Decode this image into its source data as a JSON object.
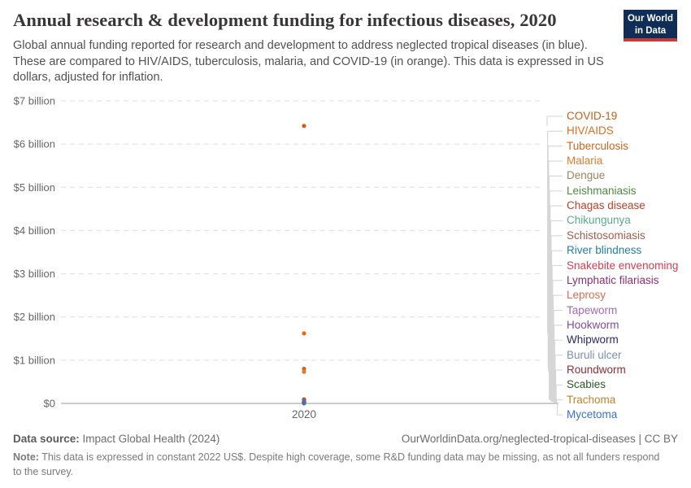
{
  "header": {
    "title": "Annual research & development funding for infectious diseases, 2020",
    "subtitle": "Global annual funding reported for research and development to address neglected tropical diseases (in blue). These are compared to HIV/AIDS, tuberculosis, malaria, and COVID-19 (in orange). This data is expressed in US dollars, adjusted for inflation.",
    "logo": {
      "line1": "Our World",
      "line2": "in Data",
      "bg_color": "#0E2D57",
      "stripe_color": "#CE372B"
    }
  },
  "chart_data": {
    "type": "scatter",
    "title": "Annual research & development funding for infectious diseases, 2020",
    "x": [
      2020
    ],
    "x_tick_label": "2020",
    "unit": "US$ billion, constant 2022 US$",
    "ylim": [
      0,
      7
    ],
    "grid": true,
    "legend_position": "right",
    "y_ticks": [
      {
        "value": 7,
        "label": "$7 billion"
      },
      {
        "value": 6,
        "label": "$6 billion"
      },
      {
        "value": 5,
        "label": "$5 billion"
      },
      {
        "value": 4,
        "label": "$4 billion"
      },
      {
        "value": 3,
        "label": "$3 billion"
      },
      {
        "value": 2,
        "label": "$2 billion"
      },
      {
        "value": 1,
        "label": "$1 billion"
      },
      {
        "value": 0,
        "label": "$0"
      }
    ],
    "series": [
      {
        "name": "COVID-19",
        "value": 6.42,
        "color": "#CB5D15"
      },
      {
        "name": "HIV/AIDS",
        "value": 1.62,
        "color": "#DF6E1D"
      },
      {
        "name": "Tuberculosis",
        "value": 0.8,
        "color": "#D2641C"
      },
      {
        "name": "Malaria",
        "value": 0.73,
        "color": "#DE7C30"
      },
      {
        "name": "Dengue",
        "value": 0.095,
        "color": "#9C8465"
      },
      {
        "name": "Leishmaniasis",
        "value": 0.085,
        "color": "#4C8B3C"
      },
      {
        "name": "Chagas disease",
        "value": 0.08,
        "color": "#BC4127"
      },
      {
        "name": "Chikungunya",
        "value": 0.06,
        "color": "#58AC8C"
      },
      {
        "name": "Schistosomiasis",
        "value": 0.05,
        "color": "#A25C49"
      },
      {
        "name": "River blindness",
        "value": 0.042,
        "color": "#2180A5"
      },
      {
        "name": "Snakebite envenoming",
        "value": 0.038,
        "color": "#D73C50"
      },
      {
        "name": "Lymphatic filariasis",
        "value": 0.032,
        "color": "#8C2D74"
      },
      {
        "name": "Leprosy",
        "value": 0.028,
        "color": "#E06952"
      },
      {
        "name": "Tapeworm",
        "value": 0.024,
        "color": "#A668B8"
      },
      {
        "name": "Hookworm",
        "value": 0.02,
        "color": "#7E4BA9"
      },
      {
        "name": "Whipworm",
        "value": 0.017,
        "color": "#2B2A66"
      },
      {
        "name": "Buruli ulcer",
        "value": 0.014,
        "color": "#7B8DBB"
      },
      {
        "name": "Roundworm",
        "value": 0.011,
        "color": "#8F2C3B"
      },
      {
        "name": "Scabies",
        "value": 0.008,
        "color": "#2D5828"
      },
      {
        "name": "Trachoma",
        "value": 0.005,
        "color": "#C0822F"
      },
      {
        "name": "Mycetoma",
        "value": 0.003,
        "color": "#3D6FD0"
      }
    ]
  },
  "footer": {
    "data_source_label": "Data source:",
    "data_source": " Impact Global Health (2024)",
    "link": "OurWorldinData.org/neglected-tropical-diseases | CC BY",
    "note_label": "Note:",
    "note": " This data is expressed in constant 2022 US$. Despite high coverage, some R&D funding data may be missing, as not all funders respond to the survey."
  }
}
